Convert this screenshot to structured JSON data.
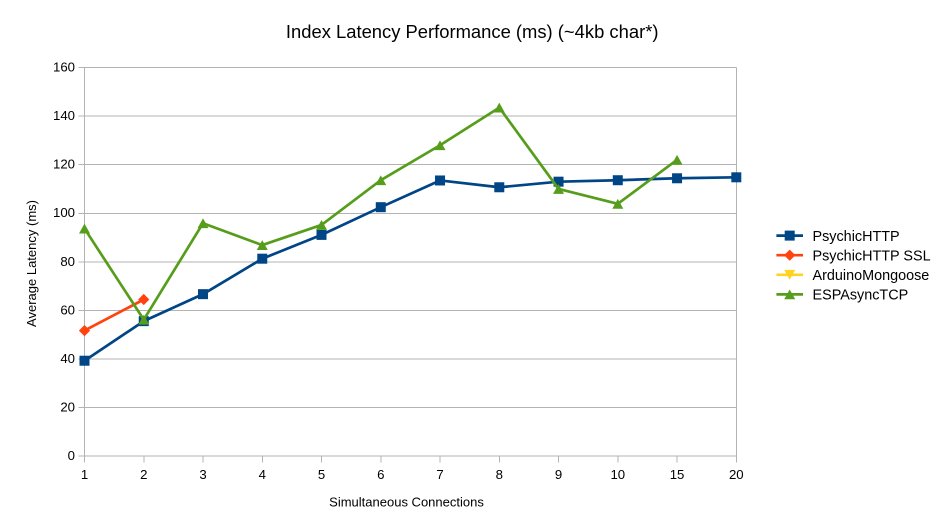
{
  "chart_data": {
    "type": "line",
    "title": "Index Latency Performance (ms) (~4kb char*)",
    "xlabel": "Simultaneous Connections",
    "ylabel": "Average Latency (ms)",
    "categories": [
      "1",
      "2",
      "3",
      "4",
      "5",
      "6",
      "7",
      "8",
      "9",
      "10",
      "15",
      "20"
    ],
    "ylim": [
      0,
      160
    ],
    "yticks": [
      0,
      20,
      40,
      60,
      80,
      100,
      120,
      140,
      160
    ],
    "grid": "horizontal",
    "legend_position": "right",
    "series": [
      {
        "name": "PsychicHTTP",
        "color": "#004586",
        "marker": "square",
        "values": [
          39.3,
          55.6,
          66.7,
          81.3,
          91.1,
          102.5,
          113.5,
          110.7,
          113.0,
          113.6,
          114.4,
          114.8
        ]
      },
      {
        "name": "PsychicHTTP SSL",
        "color": "#FF420E",
        "marker": "diamond",
        "values": [
          51.7,
          64.5,
          null,
          null,
          null,
          null,
          null,
          null,
          null,
          null,
          null,
          null
        ]
      },
      {
        "name": "ArduinoMongoose",
        "color": "#FFD320",
        "marker": "triangle-down",
        "values": [
          null,
          null,
          null,
          null,
          null,
          null,
          null,
          null,
          null,
          null,
          null,
          null
        ]
      },
      {
        "name": "ESPAsyncTCP",
        "color": "#579D1C",
        "marker": "triangle-up",
        "values": [
          93.7,
          56.2,
          95.9,
          86.9,
          95.2,
          113.6,
          128.0,
          143.5,
          110.0,
          103.9,
          122.0,
          null
        ]
      }
    ],
    "colors": {
      "grid": "#b3b3b3",
      "axis": "#b3b3b3",
      "text": "#000000",
      "background": "#ffffff"
    }
  }
}
